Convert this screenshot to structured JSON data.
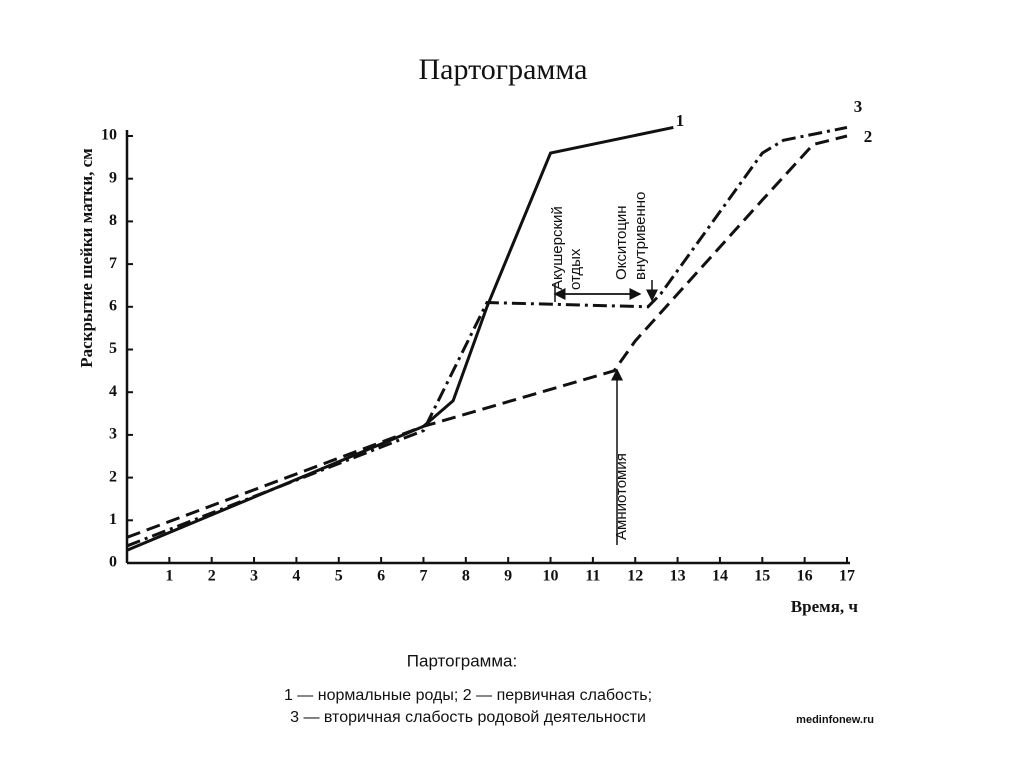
{
  "chart_data": {
    "type": "line",
    "title": "Партограмма",
    "ylabel": "Раскрытие шейки матки, см",
    "xlabel": "Время, ч",
    "xlim": [
      0,
      17
    ],
    "ylim": [
      0,
      10
    ],
    "xticks": [
      1,
      2,
      3,
      4,
      5,
      6,
      7,
      8,
      9,
      10,
      11,
      12,
      13,
      14,
      15,
      16,
      17
    ],
    "yticks": [
      0,
      1,
      2,
      3,
      4,
      5,
      6,
      7,
      8,
      9,
      10
    ],
    "series": [
      {
        "name": "1",
        "color": "#111111",
        "dash": "solid",
        "x": [
          0,
          7,
          7.7,
          8.5,
          10,
          12.9
        ],
        "values": [
          0.3,
          3.2,
          3.8,
          6,
          9.6,
          10.2
        ]
      },
      {
        "name": "2",
        "color": "#111111",
        "dash": "dashed",
        "x": [
          0,
          7,
          11.5,
          12,
          15,
          16.2,
          17
        ],
        "values": [
          0.6,
          3.2,
          4.5,
          5.2,
          8.5,
          9.8,
          10
        ]
      },
      {
        "name": "3",
        "color": "#111111",
        "dash": "dashdot",
        "x": [
          0,
          7,
          8.5,
          12.3,
          12.6,
          15,
          15.5,
          17
        ],
        "values": [
          0.4,
          3.1,
          6.1,
          6,
          6.3,
          9.6,
          9.9,
          10.2
        ]
      }
    ],
    "annotations": [
      [
        "Акушерский",
        "отдых"
      ],
      [
        "Окситоцин",
        "внутривенно"
      ],
      [
        "Амниотомия"
      ]
    ],
    "caption": [
      "Партограмма:",
      "1 — нормальные роды; 2 — первичная слабость;",
      "3 — вторичная слабость родовой деятельности"
    ],
    "source": "medinfonew.ru"
  }
}
